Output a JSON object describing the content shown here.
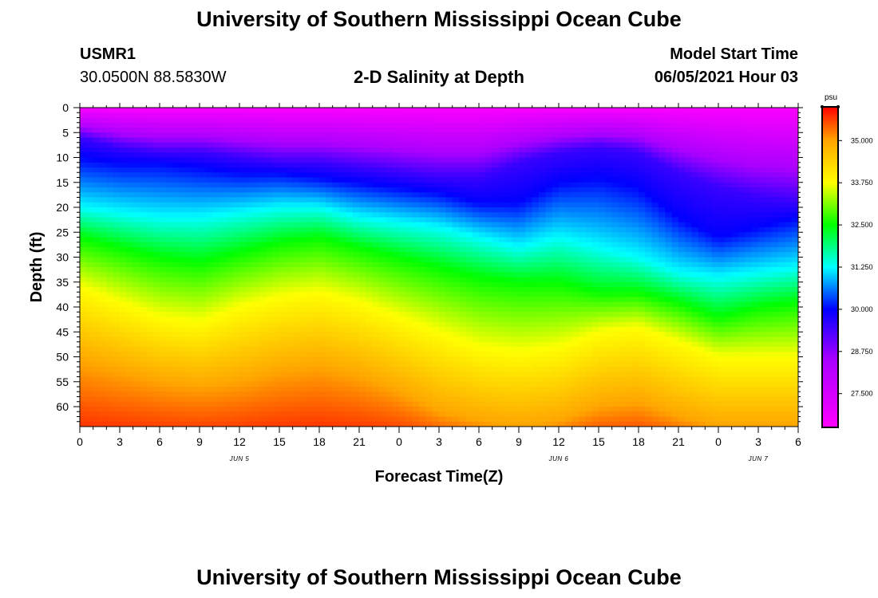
{
  "header": {
    "title_top": "University of Southern Mississippi Ocean Cube",
    "title_bottom": "University of Southern Mississippi Ocean Cube",
    "station_id": "USMR1",
    "coordinates": "30.0500N  88.5830W",
    "plot_title": "2-D Salinity at Depth",
    "model_start_label": "Model Start Time",
    "model_start_value": "06/05/2021 Hour 03"
  },
  "chart_data": {
    "type": "heatmap",
    "title": "2-D Salinity at Depth",
    "xlabel": "Forecast Time(Z)",
    "ylabel": "Depth (ft)",
    "x_tick_labels": [
      "0",
      "3",
      "6",
      "9",
      "12",
      "15",
      "18",
      "21",
      "0",
      "3",
      "6",
      "9",
      "12",
      "15",
      "18",
      "21",
      "0",
      "3",
      "6"
    ],
    "x_range_hours": [
      0,
      54
    ],
    "day_labels": [
      {
        "label": "JUN 5",
        "hour": 12
      },
      {
        "label": "JUN 6",
        "hour": 36
      },
      {
        "label": "JUN 7",
        "hour": 51
      }
    ],
    "y_tick_labels": [
      "0",
      "5",
      "10",
      "15",
      "20",
      "25",
      "30",
      "35",
      "40",
      "45",
      "50",
      "55",
      "60"
    ],
    "y_tick_values": [
      0,
      5,
      10,
      15,
      20,
      25,
      30,
      35,
      40,
      45,
      50,
      55,
      60
    ],
    "ylim": [
      0,
      64
    ],
    "colorbar": {
      "unit": "psu",
      "min": 26.5,
      "max": 36.0,
      "tick_labels": [
        "27.500",
        "28.750",
        "30.000",
        "31.250",
        "32.500",
        "33.750",
        "35.000"
      ],
      "tick_values": [
        27.5,
        28.75,
        30.0,
        31.25,
        32.5,
        33.75,
        35.0
      ]
    },
    "isohaline_depths_ft": {
      "hours": [
        0,
        3,
        6,
        9,
        12,
        15,
        18,
        21,
        24,
        27,
        30,
        33,
        36,
        39,
        42,
        45,
        48,
        51,
        54
      ],
      "s_29_5": [
        6,
        8,
        9,
        9,
        10,
        11,
        11,
        12,
        13,
        14,
        14,
        11,
        9,
        8,
        9,
        13,
        16,
        18,
        19
      ],
      "s_30_0": [
        10,
        11,
        11,
        12,
        13,
        13,
        14,
        15,
        16,
        17,
        19,
        19,
        15,
        14,
        16,
        22,
        26,
        24,
        22
      ],
      "s_31_25": [
        20,
        21,
        22,
        22,
        21,
        20,
        20,
        22,
        23,
        24,
        26,
        28,
        26,
        28,
        30,
        33,
        34,
        33,
        32
      ],
      "s_32_5": [
        26,
        28,
        30,
        31,
        29,
        27,
        26,
        28,
        30,
        32,
        34,
        35,
        35,
        37,
        37,
        39,
        42,
        40,
        39
      ],
      "s_33_75": [
        36,
        39,
        42,
        43,
        40,
        38,
        37,
        39,
        42,
        45,
        48,
        49,
        48,
        45,
        44,
        47,
        50,
        50,
        50
      ],
      "s_35_0": [
        51,
        53,
        55,
        56,
        55,
        53,
        52,
        54,
        57,
        61,
        63,
        64,
        63,
        60,
        59,
        62,
        64,
        64,
        64
      ]
    }
  }
}
